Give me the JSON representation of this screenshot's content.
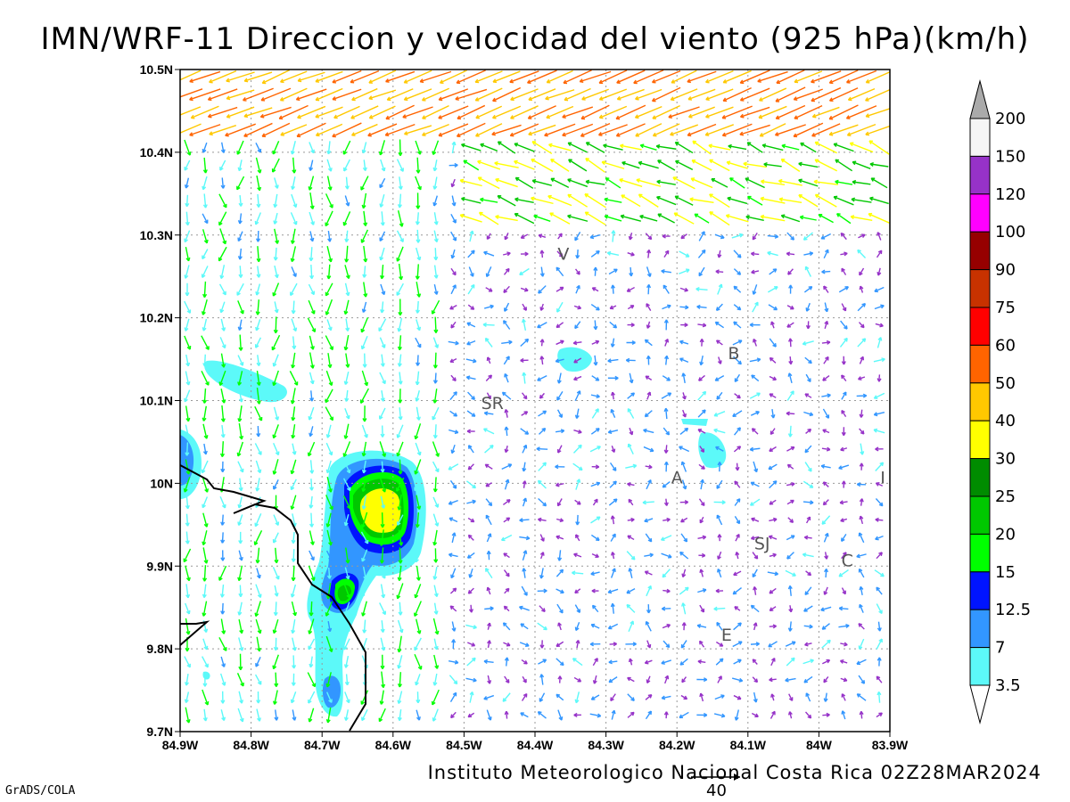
{
  "title": "IMN/WRF-11 Direccion y velocidad del viento (925 hPa)(km/h)",
  "credit": "Instituto Meteorologico Nacional Costa Rica 02Z28MAR2024",
  "software": "GrADS/COLA",
  "vector_scale_label": "40",
  "axes": {
    "lon_ticks": [
      "84.9W",
      "84.8W",
      "84.7W",
      "84.6W",
      "84.5W",
      "84.4W",
      "84.3W",
      "84.2W",
      "84.1W",
      "84W",
      "83.9W"
    ],
    "lat_ticks": [
      "10.5N",
      "10.4N",
      "10.3N",
      "10.2N",
      "10.1N",
      "10N",
      "9.9N",
      "9.8N",
      "9.7N"
    ],
    "lon_range": [
      -84.9,
      -83.9
    ],
    "lat_range": [
      9.7,
      10.5
    ],
    "grid": "dotted"
  },
  "cities": [
    {
      "label": "V",
      "lon": -84.36,
      "lat": 10.27
    },
    {
      "label": "B",
      "lon": -84.12,
      "lat": 10.15
    },
    {
      "label": "SR",
      "lon": -84.46,
      "lat": 10.09
    },
    {
      "label": "A",
      "lon": -84.2,
      "lat": 10.0
    },
    {
      "label": "I",
      "lon": -83.91,
      "lat": 10.0
    },
    {
      "label": "SJ",
      "lon": -84.08,
      "lat": 9.92
    },
    {
      "label": "C",
      "lon": -83.96,
      "lat": 9.9
    },
    {
      "label": "E",
      "lon": -84.13,
      "lat": 9.81
    }
  ],
  "colorbar": {
    "levels": [
      "3.5",
      "7",
      "12.5",
      "15",
      "20",
      "25",
      "30",
      "40",
      "50",
      "60",
      "75",
      "90",
      "100",
      "120",
      "150",
      "200"
    ],
    "colors": [
      "#5cf9f9",
      "#3296ff",
      "#0014ff",
      "#00ff00",
      "#00c800",
      "#008c00",
      "#ffff00",
      "#ffc800",
      "#ff6400",
      "#ff0000",
      "#c83200",
      "#960000",
      "#ff00ff",
      "#9632c8",
      "#f5f5f5",
      "#aaaaaa"
    ]
  }
}
